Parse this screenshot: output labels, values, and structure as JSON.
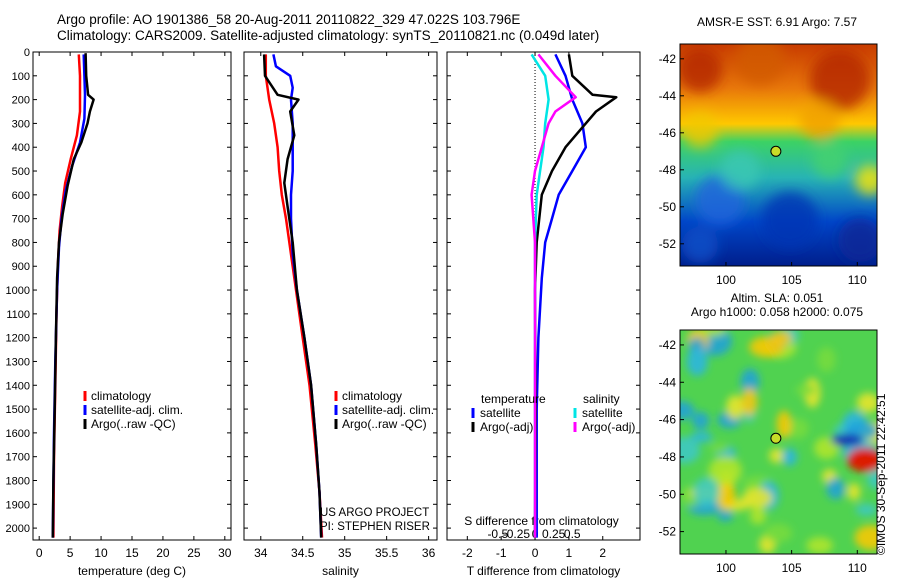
{
  "header": {
    "line1": "Argo profile: AO 1901386_58 20-Aug-2011 20110822_329 47.022S 103.796E",
    "line2": "Climatology: CARS2009. Satellite-adjusted climatology: synTS_20110821.nc (0.049d later)"
  },
  "watermark": "©IMOS 30-Sep-2011 22:42:51",
  "colors": {
    "climatology": "#ff0000",
    "satellite": "#0000ff",
    "argo": "#000000",
    "sal_satellite": "#00e5e5",
    "sal_argo": "#ff00ff"
  },
  "chart_data": [
    {
      "id": "temperature",
      "type": "line",
      "xlabel": "temperature (deg C)",
      "ylabel": "",
      "xlim": [
        -1,
        31
      ],
      "ylim": [
        2050,
        0
      ],
      "xticks": [
        "0",
        "5",
        "10",
        "15",
        "20",
        "25",
        "30"
      ],
      "yticks": [
        "0",
        "100",
        "200",
        "300",
        "400",
        "500",
        "600",
        "700",
        "800",
        "900",
        "1000",
        "1100",
        "1200",
        "1300",
        "1400",
        "1500",
        "1600",
        "1700",
        "1800",
        "1900",
        "2000"
      ],
      "legend": [
        "climatology",
        "satellite-adj. clim.",
        "Argo(..raw -QC)"
      ],
      "series": [
        {
          "name": "climatology",
          "color": "#ff0000",
          "points": [
            [
              6.4,
              10
            ],
            [
              6.6,
              100
            ],
            [
              6.6,
              250
            ],
            [
              6.1,
              350
            ],
            [
              5.1,
              450
            ],
            [
              4.2,
              550
            ],
            [
              3.7,
              650
            ],
            [
              3.3,
              750
            ],
            [
              3.0,
              900
            ],
            [
              2.8,
              1100
            ],
            [
              2.6,
              1400
            ],
            [
              2.4,
              1700
            ],
            [
              2.3,
              2040
            ]
          ]
        },
        {
          "name": "satellite-adj. clim.",
          "color": "#0000ff",
          "points": [
            [
              7.2,
              10
            ],
            [
              7.3,
              100
            ],
            [
              7.4,
              180
            ],
            [
              7.3,
              280
            ],
            [
              6.6,
              380
            ],
            [
              5.3,
              480
            ],
            [
              4.3,
              580
            ],
            [
              3.6,
              700
            ],
            [
              3.2,
              820
            ],
            [
              2.9,
              1000
            ],
            [
              2.6,
              1300
            ],
            [
              2.4,
              1600
            ],
            [
              2.2,
              2040
            ]
          ]
        },
        {
          "name": "Argo(..raw -QC)",
          "color": "#000000",
          "points": [
            [
              7.5,
              5
            ],
            [
              7.6,
              100
            ],
            [
              7.9,
              180
            ],
            [
              8.8,
              200
            ],
            [
              8.2,
              250
            ],
            [
              7.8,
              300
            ],
            [
              6.8,
              380
            ],
            [
              5.6,
              450
            ],
            [
              4.6,
              560
            ],
            [
              3.8,
              680
            ],
            [
              3.2,
              800
            ],
            [
              2.9,
              950
            ],
            [
              2.7,
              1200
            ],
            [
              2.5,
              1500
            ],
            [
              2.3,
              1800
            ],
            [
              2.2,
              2040
            ]
          ]
        }
      ]
    },
    {
      "id": "salinity",
      "type": "line",
      "xlabel": "salinity",
      "ylabel": "",
      "xlim": [
        33.8,
        36.1
      ],
      "ylim": [
        2050,
        0
      ],
      "xticks": [
        "34",
        "34.5",
        "35",
        "35.5",
        "36"
      ],
      "legend": [
        "climatology",
        "satellite-adj. clim.",
        "Argo(..raw -QC)"
      ],
      "annotation": [
        "US ARGO PROJECT",
        "PI: STEPHEN RISER"
      ],
      "series": [
        {
          "name": "climatology",
          "color": "#ff0000",
          "points": [
            [
              34.06,
              10
            ],
            [
              34.06,
              100
            ],
            [
              34.1,
              200
            ],
            [
              34.16,
              300
            ],
            [
              34.2,
              400
            ],
            [
              34.22,
              500
            ],
            [
              34.25,
              600
            ],
            [
              34.3,
              700
            ],
            [
              34.36,
              850
            ],
            [
              34.42,
              1000
            ],
            [
              34.5,
              1200
            ],
            [
              34.58,
              1400
            ],
            [
              34.65,
              1650
            ],
            [
              34.7,
              1850
            ],
            [
              34.73,
              2040
            ]
          ]
        },
        {
          "name": "satellite-adj. clim.",
          "color": "#0000ff",
          "points": [
            [
              34.15,
              10
            ],
            [
              34.18,
              60
            ],
            [
              34.35,
              100
            ],
            [
              34.38,
              150
            ],
            [
              34.36,
              200
            ],
            [
              34.38,
              300
            ],
            [
              34.38,
              400
            ],
            [
              34.38,
              500
            ],
            [
              34.36,
              600
            ],
            [
              34.36,
              700
            ],
            [
              34.38,
              850
            ],
            [
              34.43,
              1000
            ],
            [
              34.52,
              1200
            ],
            [
              34.6,
              1400
            ],
            [
              34.66,
              1650
            ],
            [
              34.7,
              1850
            ],
            [
              34.72,
              2040
            ]
          ]
        },
        {
          "name": "Argo(..raw -QC)",
          "color": "#000000",
          "points": [
            [
              34.04,
              10
            ],
            [
              34.05,
              100
            ],
            [
              34.2,
              180
            ],
            [
              34.45,
              200
            ],
            [
              34.35,
              250
            ],
            [
              34.4,
              350
            ],
            [
              34.32,
              450
            ],
            [
              34.28,
              550
            ],
            [
              34.32,
              650
            ],
            [
              34.38,
              800
            ],
            [
              34.43,
              1000
            ],
            [
              34.52,
              1200
            ],
            [
              34.6,
              1400
            ],
            [
              34.66,
              1650
            ],
            [
              34.7,
              1850
            ],
            [
              34.72,
              2040
            ]
          ]
        }
      ]
    },
    {
      "id": "difference",
      "type": "line",
      "xlabel": "T difference from climatology",
      "top_label": "S difference from climatology",
      "xlim": [
        -2.6,
        3.1
      ],
      "ylim": [
        2050,
        0
      ],
      "xticks": [
        "-2",
        "-1",
        "0",
        "1",
        "2"
      ],
      "sticks": [
        "-0.5",
        "-0.25",
        "0",
        "0.25",
        "0.5"
      ],
      "legend_titles": [
        "temperature",
        "salinity"
      ],
      "legend": [
        "satellite",
        "Argo(-adj)",
        "satellite",
        "Argo(-adj)"
      ],
      "series": [
        {
          "name": "T satellite",
          "color": "#0000ff",
          "points": [
            [
              0.6,
              10
            ],
            [
              0.9,
              100
            ],
            [
              1.1,
              200
            ],
            [
              1.4,
              300
            ],
            [
              1.5,
              400
            ],
            [
              1.1,
              500
            ],
            [
              0.7,
              600
            ],
            [
              0.5,
              700
            ],
            [
              0.3,
              800
            ],
            [
              0.2,
              950
            ],
            [
              0.1,
              1200
            ],
            [
              0.05,
              1500
            ],
            [
              0.05,
              2040
            ]
          ]
        },
        {
          "name": "T Argo(-adj)",
          "color": "#000000",
          "points": [
            [
              1.0,
              10
            ],
            [
              1.1,
              100
            ],
            [
              1.7,
              180
            ],
            [
              2.4,
              190
            ],
            [
              1.8,
              250
            ],
            [
              1.5,
              300
            ],
            [
              0.9,
              400
            ],
            [
              0.5,
              500
            ],
            [
              0.2,
              600
            ],
            [
              0.05,
              800
            ],
            [
              0.0,
              1000
            ],
            [
              0.02,
              1500
            ],
            [
              0.0,
              2040
            ]
          ]
        },
        {
          "name": "S satellite",
          "color": "#00e5e5",
          "points": [
            [
              -0.1,
              10
            ],
            [
              0.3,
              100
            ],
            [
              0.4,
              200
            ],
            [
              0.3,
              300
            ],
            [
              0.25,
              400
            ],
            [
              0.15,
              500
            ],
            [
              0.05,
              600
            ],
            [
              0.0,
              800
            ],
            [
              0.0,
              1200
            ],
            [
              0.0,
              2040
            ]
          ]
        },
        {
          "name": "S Argo(-adj)",
          "color": "#ff00ff",
          "points": [
            [
              0.1,
              10
            ],
            [
              0.6,
              100
            ],
            [
              1.2,
              190
            ],
            [
              0.6,
              250
            ],
            [
              0.4,
              300
            ],
            [
              0.2,
              400
            ],
            [
              0.0,
              500
            ],
            [
              -0.1,
              600
            ],
            [
              0.0,
              800
            ],
            [
              0.0,
              1200
            ],
            [
              0.0,
              2040
            ]
          ]
        }
      ]
    },
    {
      "id": "sst_map",
      "type": "heatmap",
      "title": "AMSR-E SST: 6.91  Argo: 7.57",
      "xticks": [
        "100",
        "105",
        "110"
      ],
      "yticks": [
        "-42",
        "-44",
        "-46",
        "-48",
        "-50",
        "-52"
      ],
      "xlim": [
        96.5,
        111.5
      ],
      "ylim": [
        -53.2,
        -41.2
      ],
      "marker": [
        103.8,
        -47.0
      ]
    },
    {
      "id": "sla_map",
      "type": "heatmap",
      "title_line1": "Altim. SLA: 0.051",
      "title_line2": "Argo h1000: 0.058 h2000: 0.075",
      "xticks": [
        "100",
        "105",
        "110"
      ],
      "yticks": [
        "-42",
        "-44",
        "-46",
        "-48",
        "-50",
        "-52"
      ],
      "xlim": [
        96.5,
        111.5
      ],
      "ylim": [
        -53.2,
        -41.2
      ],
      "marker": [
        103.8,
        -47.0
      ]
    }
  ]
}
